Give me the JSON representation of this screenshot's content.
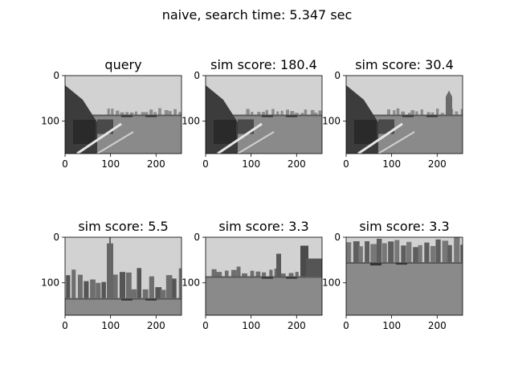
{
  "figure": {
    "title": "naive, search time: 5.347 sec"
  },
  "chart_data": {
    "type": "image-grid",
    "grid": {
      "rows": 2,
      "cols": 3
    },
    "x_ticks": [
      "0",
      "100",
      "200"
    ],
    "y_ticks": [
      "0",
      "100"
    ],
    "x_range": [
      0,
      256
    ],
    "y_range": [
      0,
      171
    ],
    "colors": {
      "frame": "#000000",
      "sky": "#d2d2d2",
      "water": "#8a8a8a",
      "buildings": "#6e6e6e"
    },
    "panels": [
      {
        "title": "query",
        "scene": "riverside-left",
        "skyline": "low"
      },
      {
        "title": "sim score: 180.4",
        "scene": "riverside-left",
        "skyline": "low"
      },
      {
        "title": "sim score: 30.4",
        "scene": "riverside-tower",
        "skyline": "low"
      },
      {
        "title": "sim score: 5.5",
        "scene": "city-skyline",
        "skyline": "tall"
      },
      {
        "title": "sim score: 3.3",
        "scene": "river-wide",
        "skyline": "medium"
      },
      {
        "title": "sim score: 3.3",
        "scene": "river-close",
        "skyline": "top"
      }
    ]
  }
}
